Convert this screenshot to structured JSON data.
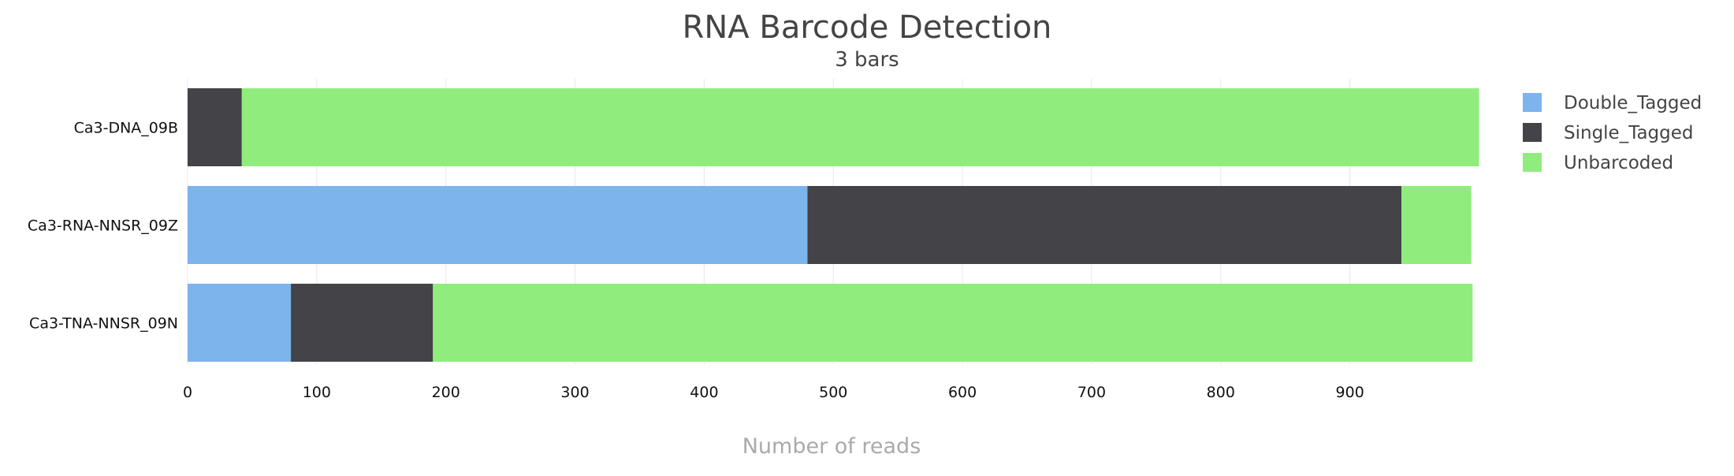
{
  "chart_data": {
    "type": "bar",
    "orientation": "horizontal",
    "stacked": true,
    "title": "RNA Barcode Detection",
    "subtitle": "3 bars",
    "xlabel": "Number of reads",
    "ylabel": "",
    "xlim": [
      0,
      1000
    ],
    "xticks": [
      0,
      100,
      200,
      300,
      400,
      500,
      600,
      700,
      800,
      900
    ],
    "grid": true,
    "legend_position": "right",
    "categories": [
      "Ca3-DNA_09B",
      "Ca3-RNA-NNSR_09Z",
      "Ca3-TNA-NNSR_09N"
    ],
    "series": [
      {
        "name": "Double_Tagged",
        "color": "#7cb4eb",
        "values": [
          0,
          480,
          80
        ]
      },
      {
        "name": "Single_Tagged",
        "color": "#434348",
        "values": [
          42,
          460,
          110
        ]
      },
      {
        "name": "Unbarcoded",
        "color": "#90ed7d",
        "values": [
          958,
          54,
          805
        ]
      }
    ]
  }
}
